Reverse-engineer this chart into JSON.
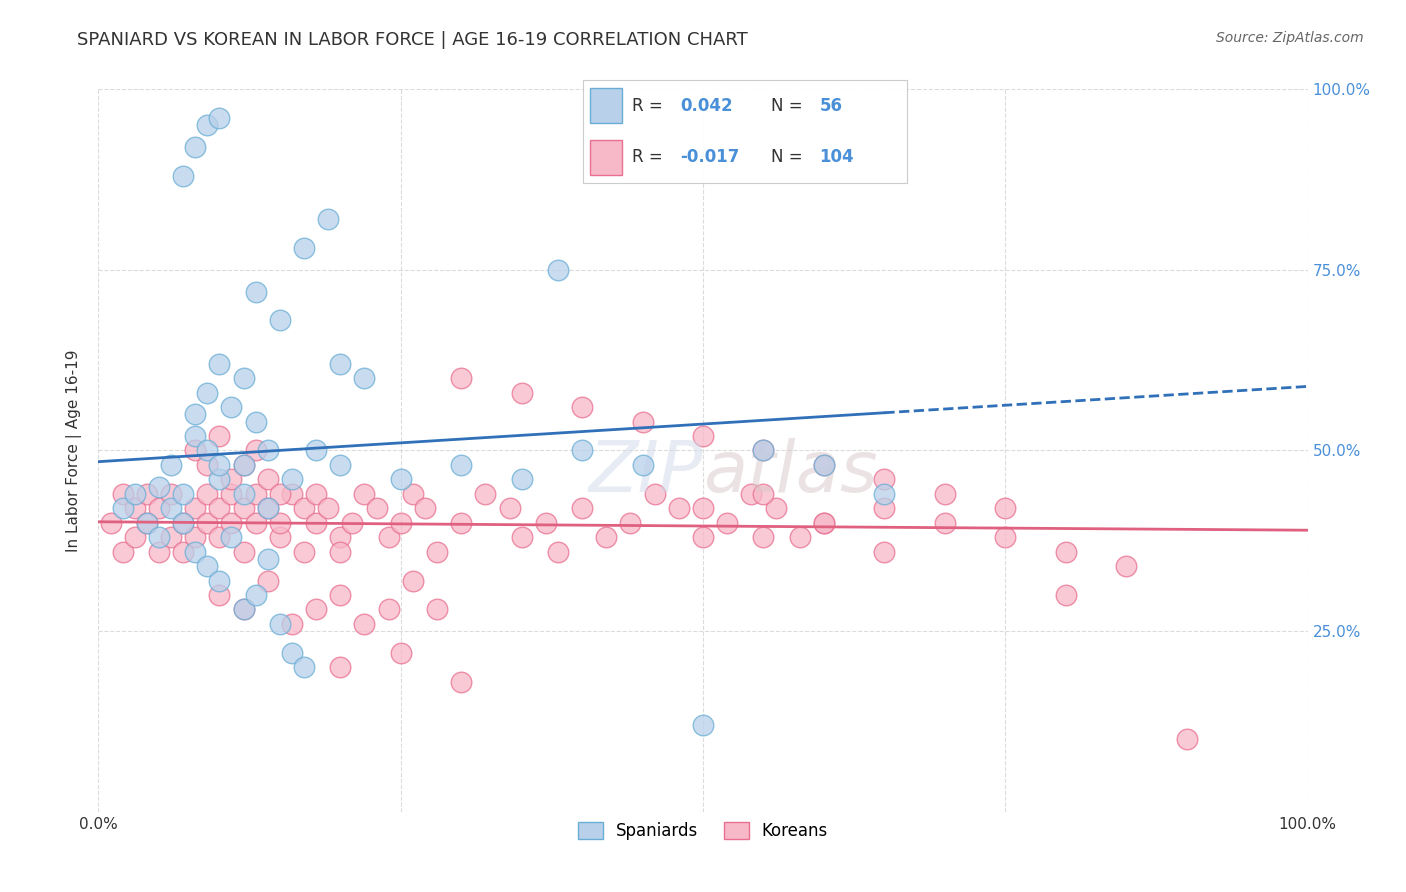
{
  "title": "SPANIARD VS KOREAN IN LABOR FORCE | AGE 16-19 CORRELATION CHART",
  "source": "Source: ZipAtlas.com",
  "ylabel": "In Labor Force | Age 16-19",
  "xlim": [
    0.0,
    1.0
  ],
  "ylim": [
    0.0,
    1.0
  ],
  "xticks": [
    0.0,
    0.25,
    0.5,
    0.75,
    1.0
  ],
  "xticklabels": [
    "0.0%",
    "",
    "",
    "",
    "100.0%"
  ],
  "yticks": [
    0.0,
    0.25,
    0.5,
    0.75,
    1.0
  ],
  "right_yticklabels": [
    "",
    "25.0%",
    "50.0%",
    "75.0%",
    "100.0%"
  ],
  "spaniard_fill": "#b8d0ea",
  "spaniard_edge": "#6aaed6",
  "korean_fill": "#f7b8c8",
  "korean_edge": "#e87090",
  "spaniard_line_color": "#3070b8",
  "korean_line_color": "#e06080",
  "R_spaniard": 0.042,
  "N_spaniard": 56,
  "R_korean": -0.017,
  "N_korean": 104,
  "title_color": "#333333",
  "source_color": "#666666",
  "grid_color": "#d8d8d8",
  "axis_label_color": "#4a90d9",
  "spaniards_x": [
    0.02,
    0.03,
    0.04,
    0.05,
    0.05,
    0.06,
    0.06,
    0.07,
    0.07,
    0.08,
    0.08,
    0.09,
    0.09,
    0.1,
    0.1,
    0.11,
    0.12,
    0.12,
    0.13,
    0.14,
    0.08,
    0.09,
    0.1,
    0.11,
    0.12,
    0.13,
    0.14,
    0.15,
    0.16,
    0.17,
    0.1,
    0.12,
    0.14,
    0.16,
    0.18,
    0.2,
    0.25,
    0.3,
    0.2,
    0.22,
    0.35,
    0.4,
    0.5,
    0.55,
    0.6,
    0.65,
    0.13,
    0.15,
    0.17,
    0.19,
    0.07,
    0.08,
    0.09,
    0.1,
    0.45,
    0.38
  ],
  "spaniards_y": [
    0.42,
    0.44,
    0.4,
    0.45,
    0.38,
    0.42,
    0.48,
    0.44,
    0.4,
    0.55,
    0.52,
    0.5,
    0.58,
    0.46,
    0.62,
    0.56,
    0.6,
    0.48,
    0.54,
    0.5,
    0.36,
    0.34,
    0.32,
    0.38,
    0.28,
    0.3,
    0.35,
    0.26,
    0.22,
    0.2,
    0.48,
    0.44,
    0.42,
    0.46,
    0.5,
    0.48,
    0.46,
    0.48,
    0.62,
    0.6,
    0.46,
    0.5,
    0.12,
    0.5,
    0.48,
    0.44,
    0.72,
    0.68,
    0.78,
    0.82,
    0.88,
    0.92,
    0.95,
    0.96,
    0.48,
    0.75
  ],
  "koreans_x": [
    0.01,
    0.02,
    0.02,
    0.03,
    0.03,
    0.04,
    0.04,
    0.05,
    0.05,
    0.06,
    0.06,
    0.07,
    0.07,
    0.08,
    0.08,
    0.09,
    0.09,
    0.1,
    0.1,
    0.11,
    0.11,
    0.12,
    0.12,
    0.13,
    0.13,
    0.14,
    0.15,
    0.15,
    0.16,
    0.17,
    0.17,
    0.18,
    0.18,
    0.19,
    0.2,
    0.2,
    0.21,
    0.22,
    0.23,
    0.24,
    0.25,
    0.26,
    0.27,
    0.28,
    0.3,
    0.32,
    0.34,
    0.35,
    0.37,
    0.38,
    0.4,
    0.42,
    0.44,
    0.46,
    0.48,
    0.5,
    0.52,
    0.54,
    0.56,
    0.58,
    0.1,
    0.12,
    0.14,
    0.16,
    0.18,
    0.2,
    0.22,
    0.24,
    0.26,
    0.28,
    0.08,
    0.09,
    0.1,
    0.11,
    0.12,
    0.13,
    0.14,
    0.15,
    0.55,
    0.6,
    0.65,
    0.7,
    0.75,
    0.8,
    0.85,
    0.9,
    0.5,
    0.55,
    0.6,
    0.65,
    0.3,
    0.35,
    0.4,
    0.45,
    0.5,
    0.55,
    0.6,
    0.65,
    0.7,
    0.75,
    0.8,
    0.2,
    0.25,
    0.3
  ],
  "koreans_y": [
    0.4,
    0.44,
    0.36,
    0.42,
    0.38,
    0.4,
    0.44,
    0.36,
    0.42,
    0.38,
    0.44,
    0.4,
    0.36,
    0.42,
    0.38,
    0.4,
    0.44,
    0.42,
    0.38,
    0.4,
    0.44,
    0.42,
    0.36,
    0.4,
    0.44,
    0.42,
    0.38,
    0.4,
    0.44,
    0.42,
    0.36,
    0.4,
    0.44,
    0.42,
    0.38,
    0.36,
    0.4,
    0.44,
    0.42,
    0.38,
    0.4,
    0.44,
    0.42,
    0.36,
    0.4,
    0.44,
    0.42,
    0.38,
    0.4,
    0.36,
    0.42,
    0.38,
    0.4,
    0.44,
    0.42,
    0.38,
    0.4,
    0.44,
    0.42,
    0.38,
    0.3,
    0.28,
    0.32,
    0.26,
    0.28,
    0.3,
    0.26,
    0.28,
    0.32,
    0.28,
    0.5,
    0.48,
    0.52,
    0.46,
    0.48,
    0.5,
    0.46,
    0.44,
    0.38,
    0.4,
    0.36,
    0.4,
    0.38,
    0.36,
    0.34,
    0.1,
    0.42,
    0.44,
    0.4,
    0.42,
    0.6,
    0.58,
    0.56,
    0.54,
    0.52,
    0.5,
    0.48,
    0.46,
    0.44,
    0.42,
    0.3,
    0.2,
    0.22,
    0.18
  ]
}
